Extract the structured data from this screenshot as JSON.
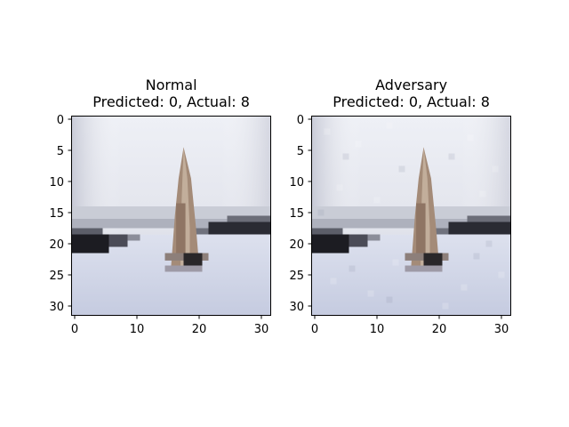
{
  "panels": [
    {
      "title": "Normal",
      "subtitle": "Predicted: 0, Actual: 8",
      "image": "sailboat-photo-32x32",
      "x_ticks": [
        "0",
        "10",
        "20",
        "30"
      ],
      "y_ticks": [
        "0",
        "5",
        "10",
        "15",
        "20",
        "25",
        "30"
      ]
    },
    {
      "title": "Adversary",
      "subtitle": "Predicted: 0, Actual: 8",
      "image": "sailboat-photo-32x32-perturbed",
      "x_ticks": [
        "0",
        "10",
        "20",
        "30"
      ],
      "y_ticks": [
        "0",
        "5",
        "10",
        "15",
        "20",
        "25",
        "30"
      ]
    }
  ],
  "colors": {
    "sky_top": "#eef0f5",
    "sky_bottom": "#d5d8e2",
    "water": "#cdd3e6",
    "shore_dark": "#1a1a20",
    "sail": "#a88f7b",
    "hull": "#272426"
  }
}
